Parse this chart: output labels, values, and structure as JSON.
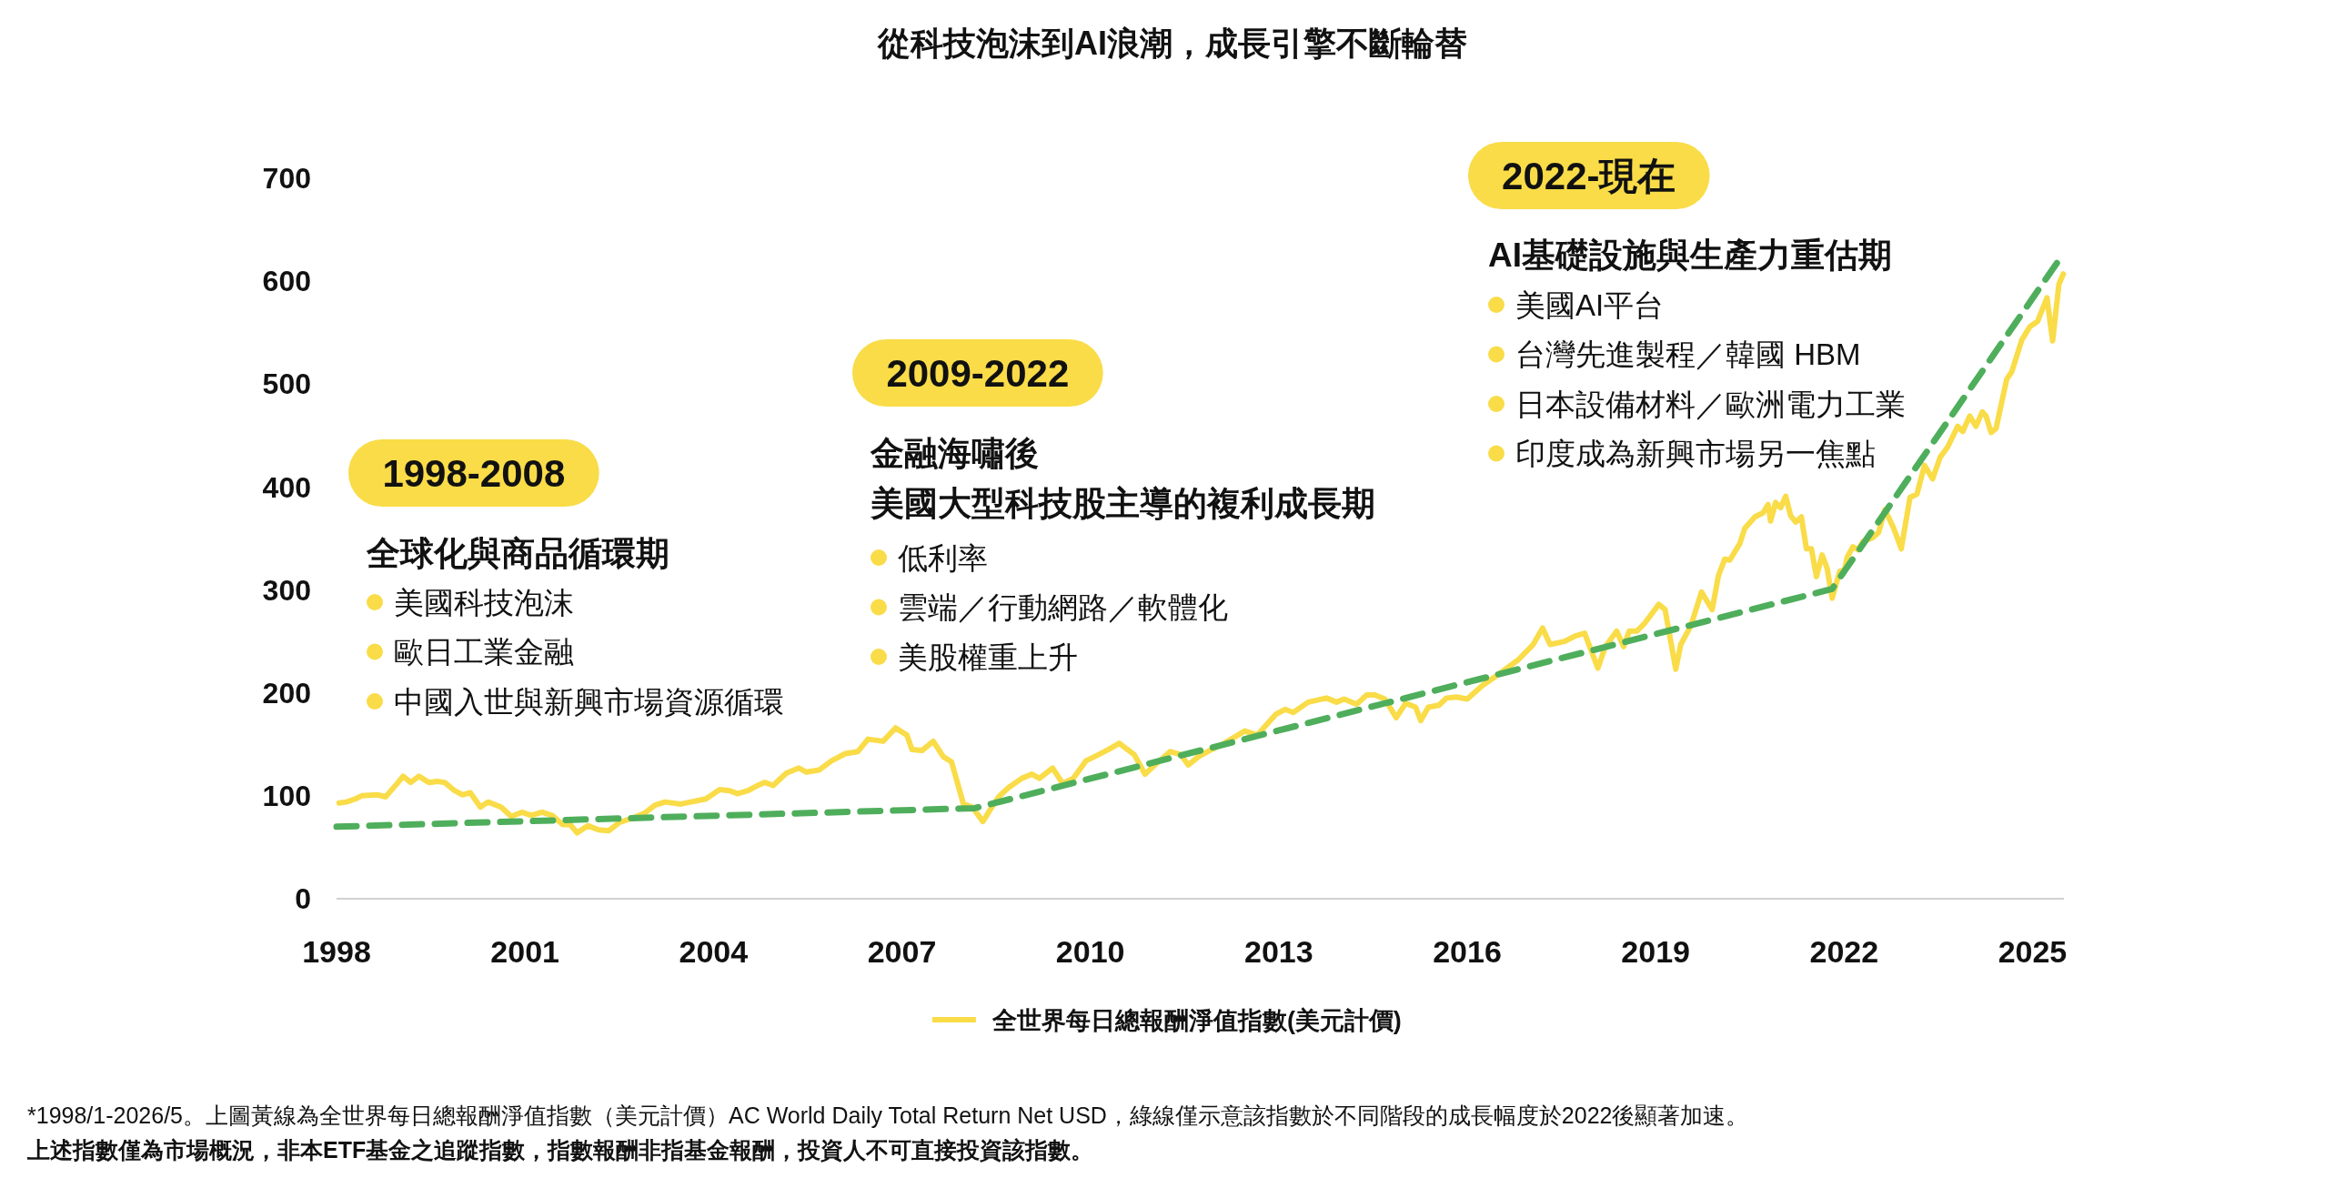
{
  "chart_data": {
    "type": "line",
    "title": "從科技泡沫到AI浪潮，成長引擎不斷輪替",
    "xlim": [
      1998,
      2025.5
    ],
    "xticks": [
      1998,
      2001,
      2004,
      2007,
      2010,
      2013,
      2016,
      2019,
      2022,
      2025
    ],
    "ylim": [
      0,
      700
    ],
    "yticks": [
      0,
      100,
      200,
      300,
      400,
      500,
      600,
      700
    ],
    "legend": "bottom",
    "series": [
      {
        "name": "全世界每日總報酬淨值指數(美元計價)",
        "color": "#f9dc48",
        "x": [
          1998.04,
          1998.16,
          1998.3,
          1998.4,
          1998.65,
          1998.78,
          1998.98,
          1999.06,
          1999.18,
          1999.31,
          1999.47,
          1999.6,
          1999.72,
          1999.88,
          2000.0,
          2000.13,
          2000.29,
          2000.41,
          2000.62,
          2000.78,
          2000.95,
          2001.1,
          2001.27,
          2001.43,
          2001.6,
          2001.72,
          2001.83,
          2002.0,
          2002.17,
          2002.33,
          2002.5,
          2002.74,
          2002.9,
          2003.07,
          2003.23,
          2003.48,
          2003.64,
          2003.88,
          2004.1,
          2004.26,
          2004.38,
          2004.55,
          2004.7,
          2004.82,
          2004.95,
          2005.16,
          2005.36,
          2005.48,
          2005.68,
          2005.88,
          2006.1,
          2006.3,
          2006.46,
          2006.7,
          2006.9,
          2007.08,
          2007.16,
          2007.32,
          2007.5,
          2007.66,
          2007.79,
          2007.98,
          2008.12,
          2008.29,
          2008.41,
          2008.54,
          2008.7,
          2008.91,
          2009.07,
          2009.19,
          2009.4,
          2009.56,
          2009.73,
          2009.93,
          2010.13,
          2010.29,
          2010.46,
          2010.7,
          2010.87,
          2011.03,
          2011.27,
          2011.44,
          2011.56,
          2011.72,
          2011.93,
          2012.13,
          2012.46,
          2012.66,
          2012.95,
          2013.1,
          2013.23,
          2013.47,
          2013.76,
          2013.92,
          2014.04,
          2014.24,
          2014.4,
          2014.53,
          2014.69,
          2014.87,
          2015.02,
          2015.18,
          2015.26,
          2015.38,
          2015.55,
          2015.67,
          2015.83,
          2016.0,
          2016.24,
          2016.52,
          2016.81,
          2017.05,
          2017.2,
          2017.32,
          2017.55,
          2017.71,
          2017.87,
          2018.08,
          2018.2,
          2018.38,
          2018.49,
          2018.58,
          2018.7,
          2018.83,
          2019.05,
          2019.15,
          2019.32,
          2019.4,
          2019.56,
          2019.73,
          2019.9,
          2020.0,
          2020.1,
          2020.18,
          2020.34,
          2020.42,
          2020.58,
          2020.71,
          2020.79,
          2020.83,
          2020.91,
          2020.99,
          2021.07,
          2021.15,
          2021.23,
          2021.32,
          2021.4,
          2021.48,
          2021.56,
          2021.65,
          2021.73,
          2021.81,
          2021.93,
          2022.01,
          2022.05,
          2022.14,
          2022.22,
          2022.3,
          2022.46,
          2022.55,
          2022.65,
          2022.79,
          2022.91,
          2023.05,
          2023.16,
          2023.28,
          2023.41,
          2023.53,
          2023.65,
          2023.81,
          2023.89,
          2024.0,
          2024.1,
          2024.2,
          2024.26,
          2024.34,
          2024.42,
          2024.59,
          2024.67,
          2024.83,
          2024.96,
          2025.08,
          2025.23,
          2025.32,
          2025.42,
          2025.49
        ],
        "values": [
          93,
          94,
          97,
          100,
          101,
          99,
          113,
          119,
          113,
          119,
          113,
          114,
          113,
          105,
          101,
          103,
          89,
          94,
          89,
          80,
          84,
          81,
          84,
          81,
          72,
          72,
          64,
          71,
          67,
          66,
          74,
          79,
          83,
          91,
          94,
          92,
          94,
          97,
          106,
          105,
          102,
          105,
          110,
          113,
          110,
          122,
          127,
          123,
          125,
          134,
          141,
          143,
          155,
          153,
          166,
          159,
          145,
          144,
          153,
          138,
          133,
          92,
          89,
          75,
          87,
          99,
          108,
          117,
          121,
          117,
          127,
          112,
          117,
          134,
          140,
          145,
          151,
          140,
          121,
          130,
          143,
          140,
          130,
          138,
          145,
          151,
          163,
          159,
          179,
          184,
          181,
          191,
          195,
          191,
          194,
          189,
          198,
          198,
          194,
          176,
          190,
          186,
          173,
          186,
          188,
          195,
          196,
          194,
          207,
          219,
          232,
          247,
          263,
          247,
          250,
          255,
          258,
          224,
          245,
          260,
          245,
          260,
          260,
          268,
          286,
          281,
          223,
          247,
          265,
          298,
          281,
          314,
          330,
          329,
          345,
          360,
          371,
          375,
          383,
          367,
          385,
          380,
          391,
          372,
          366,
          371,
          340,
          340,
          313,
          334,
          321,
          292,
          318,
          320,
          332,
          342,
          339,
          347,
          351,
          356,
          378,
          360,
          340,
          390,
          393,
          421,
          408,
          429,
          439,
          459,
          454,
          469,
          459,
          473,
          469,
          453,
          457,
          505,
          512,
          543,
          556,
          561,
          584,
          542,
          597,
          607
        ]
      },
      {
        "color": "#4fae5c",
        "line_style": "dashed",
        "x": [
          1998,
          2008.16,
          2021.81,
          2025.47
        ],
        "values": [
          70,
          88,
          301,
          625
        ]
      }
    ],
    "annotations": [
      "1998-2008",
      "全球化與商品循環期",
      "美國科技泡沫",
      "歐日工業金融",
      "中國入世與新興市場資源循環",
      "2009-2022",
      "金融海嘯後",
      "美國大型科技股主導的複利成長期",
      "低利率",
      "雲端／行動網路／軟體化",
      "美股權重上升",
      "2022-現在",
      "AI基礎設施與生產力重估期",
      "美國AI平台",
      "台灣先進製程／韓國 HBM",
      "日本設備材料／歐洲電力工業",
      "印度成為新興市場另一焦點",
      "*1998/1-2026/5。上圖黃線為全世界每日總報酬淨值指數（美元計價）AC World Daily Total Return Net USD，綠線僅示意該指數於不同階段的成長幅度於2022後顯著加速。",
      "上述指數僅為市場概況，非本ETF基金之追蹤指數，指數報酬非指基金報酬，投資人不可直接投資該指數。"
    ]
  }
}
